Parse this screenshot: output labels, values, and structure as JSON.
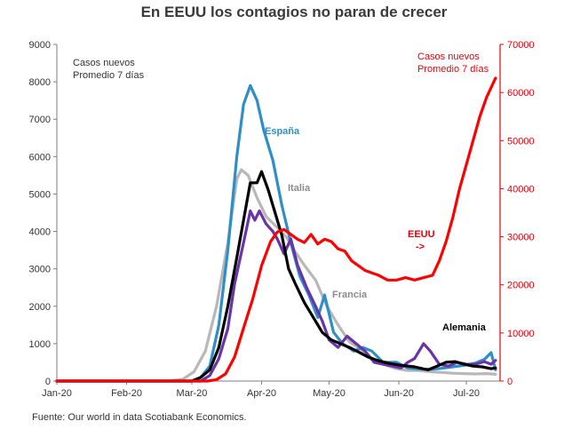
{
  "title": "En EEUU los contagios no paran de crecer",
  "source": "Fuente: Our world in data Scotiabank Economics.",
  "colors": {
    "espana": "#2e8fc8",
    "italia": "#b8b8b8",
    "francia": "#6a34a8",
    "alemania": "#000000",
    "eeuu": "#ff0000"
  },
  "chart_data": {
    "type": "line",
    "x_axis": {
      "ticks": [
        "Jan-20",
        "Feb-20",
        "Mar-20",
        "Apr-20",
        "May-20",
        "Jun-20",
        "Jul-20"
      ],
      "range": [
        "2020-01-01",
        "2020-07-16"
      ]
    },
    "y_left": {
      "range": [
        0,
        9000
      ],
      "ticks": [
        "0",
        "1000",
        "2000",
        "3000",
        "4000",
        "5000",
        "6000",
        "7000",
        "8000",
        "9000"
      ],
      "note": [
        "Casos nuevos",
        "Promedio 7 días"
      ]
    },
    "y_right": {
      "range": [
        0,
        70000
      ],
      "ticks": [
        "0",
        "10000",
        "20000",
        "30000",
        "40000",
        "50000",
        "60000",
        "70000"
      ],
      "note": [
        "Casos nuevos",
        "Promedio 7 días"
      ],
      "color": "#e8000b"
    },
    "grid": false,
    "series": [
      {
        "name": "Italia",
        "axis": "left",
        "color": "#b8b8b8",
        "points": [
          [
            "2020-01-01",
            0
          ],
          [
            "2020-02-20",
            0
          ],
          [
            "2020-02-26",
            50
          ],
          [
            "2020-03-02",
            250
          ],
          [
            "2020-03-07",
            800
          ],
          [
            "2020-03-12",
            2000
          ],
          [
            "2020-03-17",
            3700
          ],
          [
            "2020-03-21",
            5400
          ],
          [
            "2020-03-23",
            5650
          ],
          [
            "2020-03-26",
            5500
          ],
          [
            "2020-03-30",
            4900
          ],
          [
            "2020-04-03",
            4400
          ],
          [
            "2020-04-08",
            4100
          ],
          [
            "2020-04-12",
            3850
          ],
          [
            "2020-04-16",
            3450
          ],
          [
            "2020-04-20",
            3100
          ],
          [
            "2020-04-25",
            2700
          ],
          [
            "2020-04-30",
            2000
          ],
          [
            "2020-05-05",
            1500
          ],
          [
            "2020-05-10",
            1050
          ],
          [
            "2020-05-15",
            850
          ],
          [
            "2020-05-20",
            600
          ],
          [
            "2020-05-25",
            450
          ],
          [
            "2020-05-31",
            330
          ],
          [
            "2020-06-05",
            280
          ],
          [
            "2020-06-10",
            280
          ],
          [
            "2020-06-15",
            250
          ],
          [
            "2020-06-20",
            230
          ],
          [
            "2020-06-25",
            210
          ],
          [
            "2020-06-30",
            200
          ],
          [
            "2020-07-05",
            190
          ],
          [
            "2020-07-10",
            200
          ],
          [
            "2020-07-14",
            180
          ]
        ]
      },
      {
        "name": "España",
        "axis": "left",
        "color": "#2e8fc8",
        "points": [
          [
            "2020-01-01",
            0
          ],
          [
            "2020-03-01",
            0
          ],
          [
            "2020-03-05",
            100
          ],
          [
            "2020-03-09",
            400
          ],
          [
            "2020-03-13",
            1500
          ],
          [
            "2020-03-17",
            3500
          ],
          [
            "2020-03-21",
            6000
          ],
          [
            "2020-03-24",
            7400
          ],
          [
            "2020-03-27",
            7900
          ],
          [
            "2020-03-30",
            7500
          ],
          [
            "2020-04-02",
            6700
          ],
          [
            "2020-04-06",
            5900
          ],
          [
            "2020-04-10",
            4700
          ],
          [
            "2020-04-14",
            3700
          ],
          [
            "2020-04-18",
            2800
          ],
          [
            "2020-04-22",
            2300
          ],
          [
            "2020-04-26",
            1700
          ],
          [
            "2020-04-29",
            2300
          ],
          [
            "2020-05-03",
            1300
          ],
          [
            "2020-05-07",
            1000
          ],
          [
            "2020-05-12",
            800
          ],
          [
            "2020-05-16",
            900
          ],
          [
            "2020-05-20",
            800
          ],
          [
            "2020-05-25",
            500
          ],
          [
            "2020-05-31",
            500
          ],
          [
            "2020-06-05",
            350
          ],
          [
            "2020-06-10",
            320
          ],
          [
            "2020-06-15",
            310
          ],
          [
            "2020-06-20",
            340
          ],
          [
            "2020-06-25",
            380
          ],
          [
            "2020-06-30",
            420
          ],
          [
            "2020-07-05",
            480
          ],
          [
            "2020-07-09",
            580
          ],
          [
            "2020-07-12",
            760
          ],
          [
            "2020-07-14",
            300
          ]
        ]
      },
      {
        "name": "Francia",
        "axis": "left",
        "color": "#6a34a8",
        "points": [
          [
            "2020-01-01",
            0
          ],
          [
            "2020-03-05",
            0
          ],
          [
            "2020-03-09",
            150
          ],
          [
            "2020-03-13",
            600
          ],
          [
            "2020-03-17",
            1400
          ],
          [
            "2020-03-20",
            2600
          ],
          [
            "2020-03-24",
            3700
          ],
          [
            "2020-03-27",
            4550
          ],
          [
            "2020-03-29",
            4300
          ],
          [
            "2020-03-31",
            4550
          ],
          [
            "2020-04-03",
            4200
          ],
          [
            "2020-04-06",
            4000
          ],
          [
            "2020-04-08",
            3800
          ],
          [
            "2020-04-11",
            3400
          ],
          [
            "2020-04-14",
            3800
          ],
          [
            "2020-04-17",
            3100
          ],
          [
            "2020-04-21",
            2500
          ],
          [
            "2020-04-25",
            2000
          ],
          [
            "2020-04-28",
            1600
          ],
          [
            "2020-05-01",
            1100
          ],
          [
            "2020-05-05",
            900
          ],
          [
            "2020-05-09",
            1200
          ],
          [
            "2020-05-13",
            1000
          ],
          [
            "2020-05-17",
            800
          ],
          [
            "2020-05-21",
            500
          ],
          [
            "2020-05-25",
            450
          ],
          [
            "2020-05-29",
            400
          ],
          [
            "2020-06-02",
            350
          ],
          [
            "2020-06-05",
            500
          ],
          [
            "2020-06-08",
            600
          ],
          [
            "2020-06-12",
            1000
          ],
          [
            "2020-06-15",
            800
          ],
          [
            "2020-06-19",
            450
          ],
          [
            "2020-06-23",
            400
          ],
          [
            "2020-06-27",
            500
          ],
          [
            "2020-07-01",
            450
          ],
          [
            "2020-07-05",
            450
          ],
          [
            "2020-07-09",
            520
          ],
          [
            "2020-07-12",
            450
          ],
          [
            "2020-07-14",
            550
          ]
        ]
      },
      {
        "name": "Alemania",
        "axis": "left",
        "color": "#000000",
        "points": [
          [
            "2020-01-01",
            0
          ],
          [
            "2020-03-01",
            0
          ],
          [
            "2020-03-05",
            100
          ],
          [
            "2020-03-09",
            300
          ],
          [
            "2020-03-13",
            900
          ],
          [
            "2020-03-17",
            2000
          ],
          [
            "2020-03-21",
            3300
          ],
          [
            "2020-03-24",
            4300
          ],
          [
            "2020-03-27",
            5300
          ],
          [
            "2020-03-30",
            5300
          ],
          [
            "2020-04-01",
            5600
          ],
          [
            "2020-04-04",
            5100
          ],
          [
            "2020-04-07",
            4500
          ],
          [
            "2020-04-10",
            3900
          ],
          [
            "2020-04-13",
            3000
          ],
          [
            "2020-04-16",
            2600
          ],
          [
            "2020-04-20",
            2100
          ],
          [
            "2020-04-24",
            1700
          ],
          [
            "2020-04-28",
            1300
          ],
          [
            "2020-05-02",
            1100
          ],
          [
            "2020-05-06",
            1000
          ],
          [
            "2020-05-10",
            900
          ],
          [
            "2020-05-14",
            780
          ],
          [
            "2020-05-18",
            650
          ],
          [
            "2020-05-22",
            560
          ],
          [
            "2020-05-27",
            480
          ],
          [
            "2020-06-02",
            420
          ],
          [
            "2020-06-08",
            380
          ],
          [
            "2020-06-14",
            300
          ],
          [
            "2020-06-18",
            400
          ],
          [
            "2020-06-22",
            500
          ],
          [
            "2020-06-26",
            520
          ],
          [
            "2020-06-30",
            450
          ],
          [
            "2020-07-04",
            400
          ],
          [
            "2020-07-08",
            380
          ],
          [
            "2020-07-12",
            330
          ],
          [
            "2020-07-14",
            350
          ]
        ]
      },
      {
        "name": "EEUU",
        "axis": "right",
        "color": "#ff0000",
        "points": [
          [
            "2020-01-01",
            0
          ],
          [
            "2020-03-08",
            0
          ],
          [
            "2020-03-12",
            300
          ],
          [
            "2020-03-16",
            1500
          ],
          [
            "2020-03-20",
            5000
          ],
          [
            "2020-03-24",
            11000
          ],
          [
            "2020-03-28",
            17000
          ],
          [
            "2020-04-01",
            24000
          ],
          [
            "2020-04-05",
            29000
          ],
          [
            "2020-04-08",
            31000
          ],
          [
            "2020-04-11",
            31500
          ],
          [
            "2020-04-14",
            30500
          ],
          [
            "2020-04-17",
            29500
          ],
          [
            "2020-04-20",
            28800
          ],
          [
            "2020-04-23",
            30500
          ],
          [
            "2020-04-26",
            28500
          ],
          [
            "2020-04-29",
            29500
          ],
          [
            "2020-05-02",
            29000
          ],
          [
            "2020-05-05",
            27500
          ],
          [
            "2020-05-08",
            27000
          ],
          [
            "2020-05-11",
            25000
          ],
          [
            "2020-05-14",
            24000
          ],
          [
            "2020-05-17",
            23000
          ],
          [
            "2020-05-20",
            22500
          ],
          [
            "2020-05-23",
            22000
          ],
          [
            "2020-05-27",
            21000
          ],
          [
            "2020-05-31",
            21000
          ],
          [
            "2020-06-04",
            21500
          ],
          [
            "2020-06-08",
            21000
          ],
          [
            "2020-06-12",
            21500
          ],
          [
            "2020-06-16",
            22000
          ],
          [
            "2020-06-19",
            25000
          ],
          [
            "2020-06-22",
            29000
          ],
          [
            "2020-06-25",
            34000
          ],
          [
            "2020-06-28",
            40000
          ],
          [
            "2020-07-01",
            45000
          ],
          [
            "2020-07-04",
            50000
          ],
          [
            "2020-07-07",
            55000
          ],
          [
            "2020-07-10",
            59000
          ],
          [
            "2020-07-13",
            62000
          ],
          [
            "2020-07-14",
            63000
          ]
        ]
      }
    ],
    "annotations": [
      {
        "text": "España",
        "color": "#2e8fc8"
      },
      {
        "text": "Italia",
        "color": "#8c8c8c"
      },
      {
        "text": "Francia",
        "color": "#8c8c8c"
      },
      {
        "text": "Alemania",
        "color": "#000000"
      },
      {
        "text": "EEUU",
        "color": "#e8000b"
      },
      {
        "text": "->",
        "color": "#e8000b"
      }
    ]
  }
}
